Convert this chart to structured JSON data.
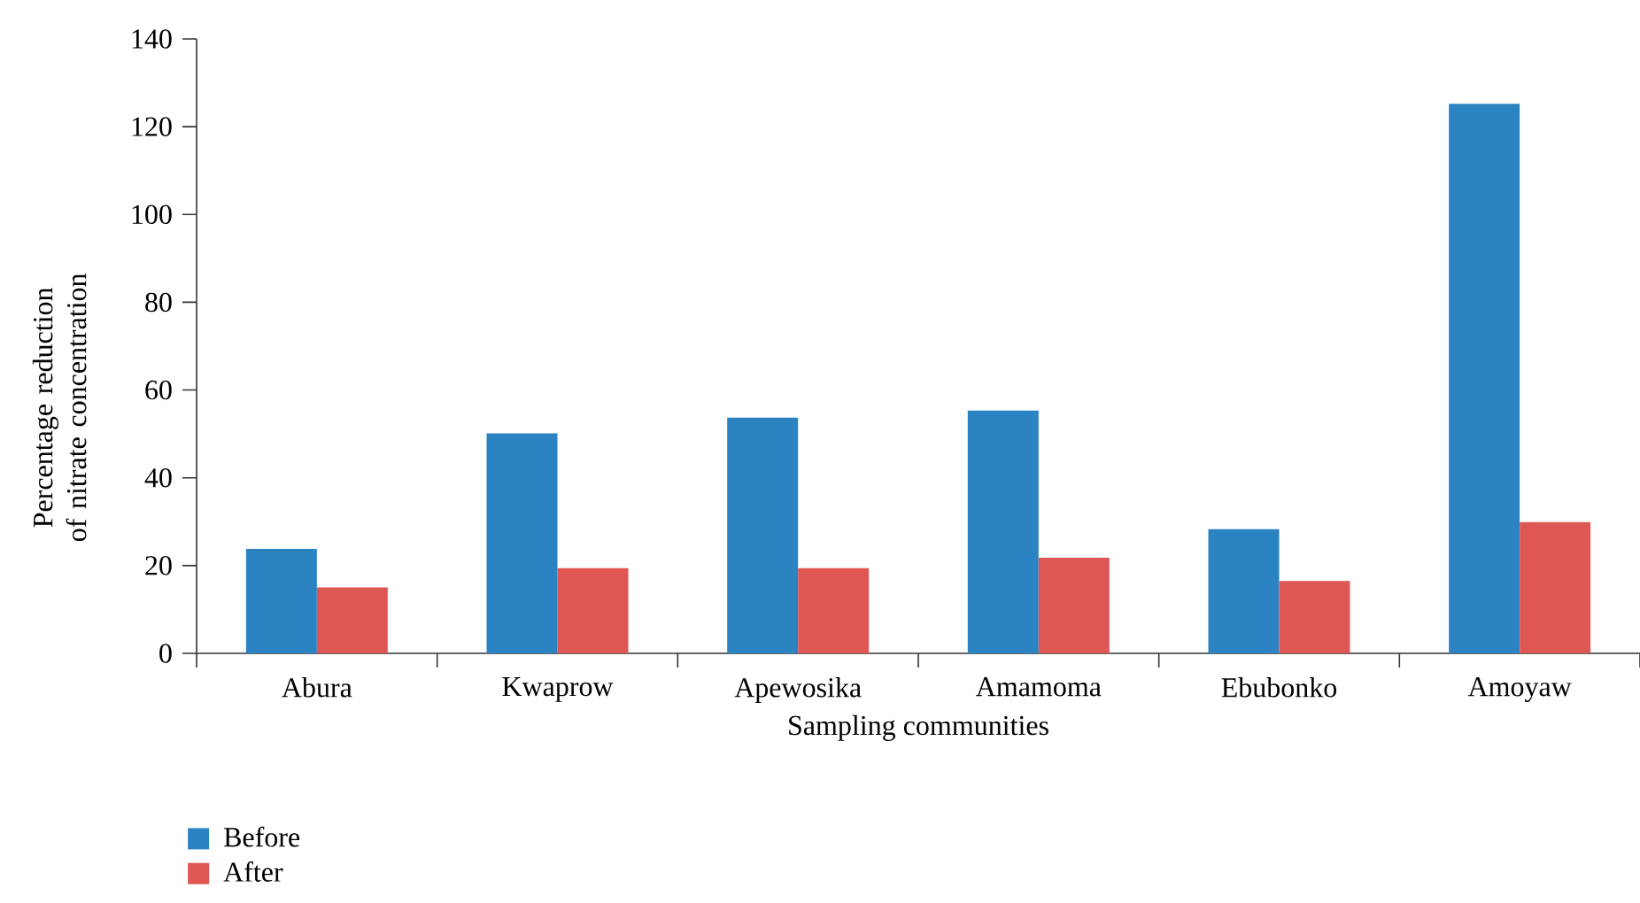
{
  "chart_data": {
    "type": "bar",
    "xlabel": "Sampling communities",
    "ylabel": "Percentage reduction of nitrate concentration",
    "categories": [
      "Abura",
      "Kwaprow",
      "Apewosika",
      "Amamoma",
      "Ebubonko",
      "Amoyaw"
    ],
    "series": [
      {
        "name": "Before",
        "color": "#2b83c2",
        "values": [
          23.8,
          50.1,
          53.7,
          55.3,
          28.3,
          125.2
        ]
      },
      {
        "name": "After",
        "color": "#de5755",
        "values": [
          15.0,
          19.4,
          19.4,
          21.8,
          16.5,
          29.9
        ]
      }
    ],
    "ylim": [
      0,
      140
    ],
    "yticks": [
      0,
      20,
      40,
      60,
      80,
      100,
      120,
      140
    ],
    "grid": false,
    "legend": "bottom left"
  }
}
